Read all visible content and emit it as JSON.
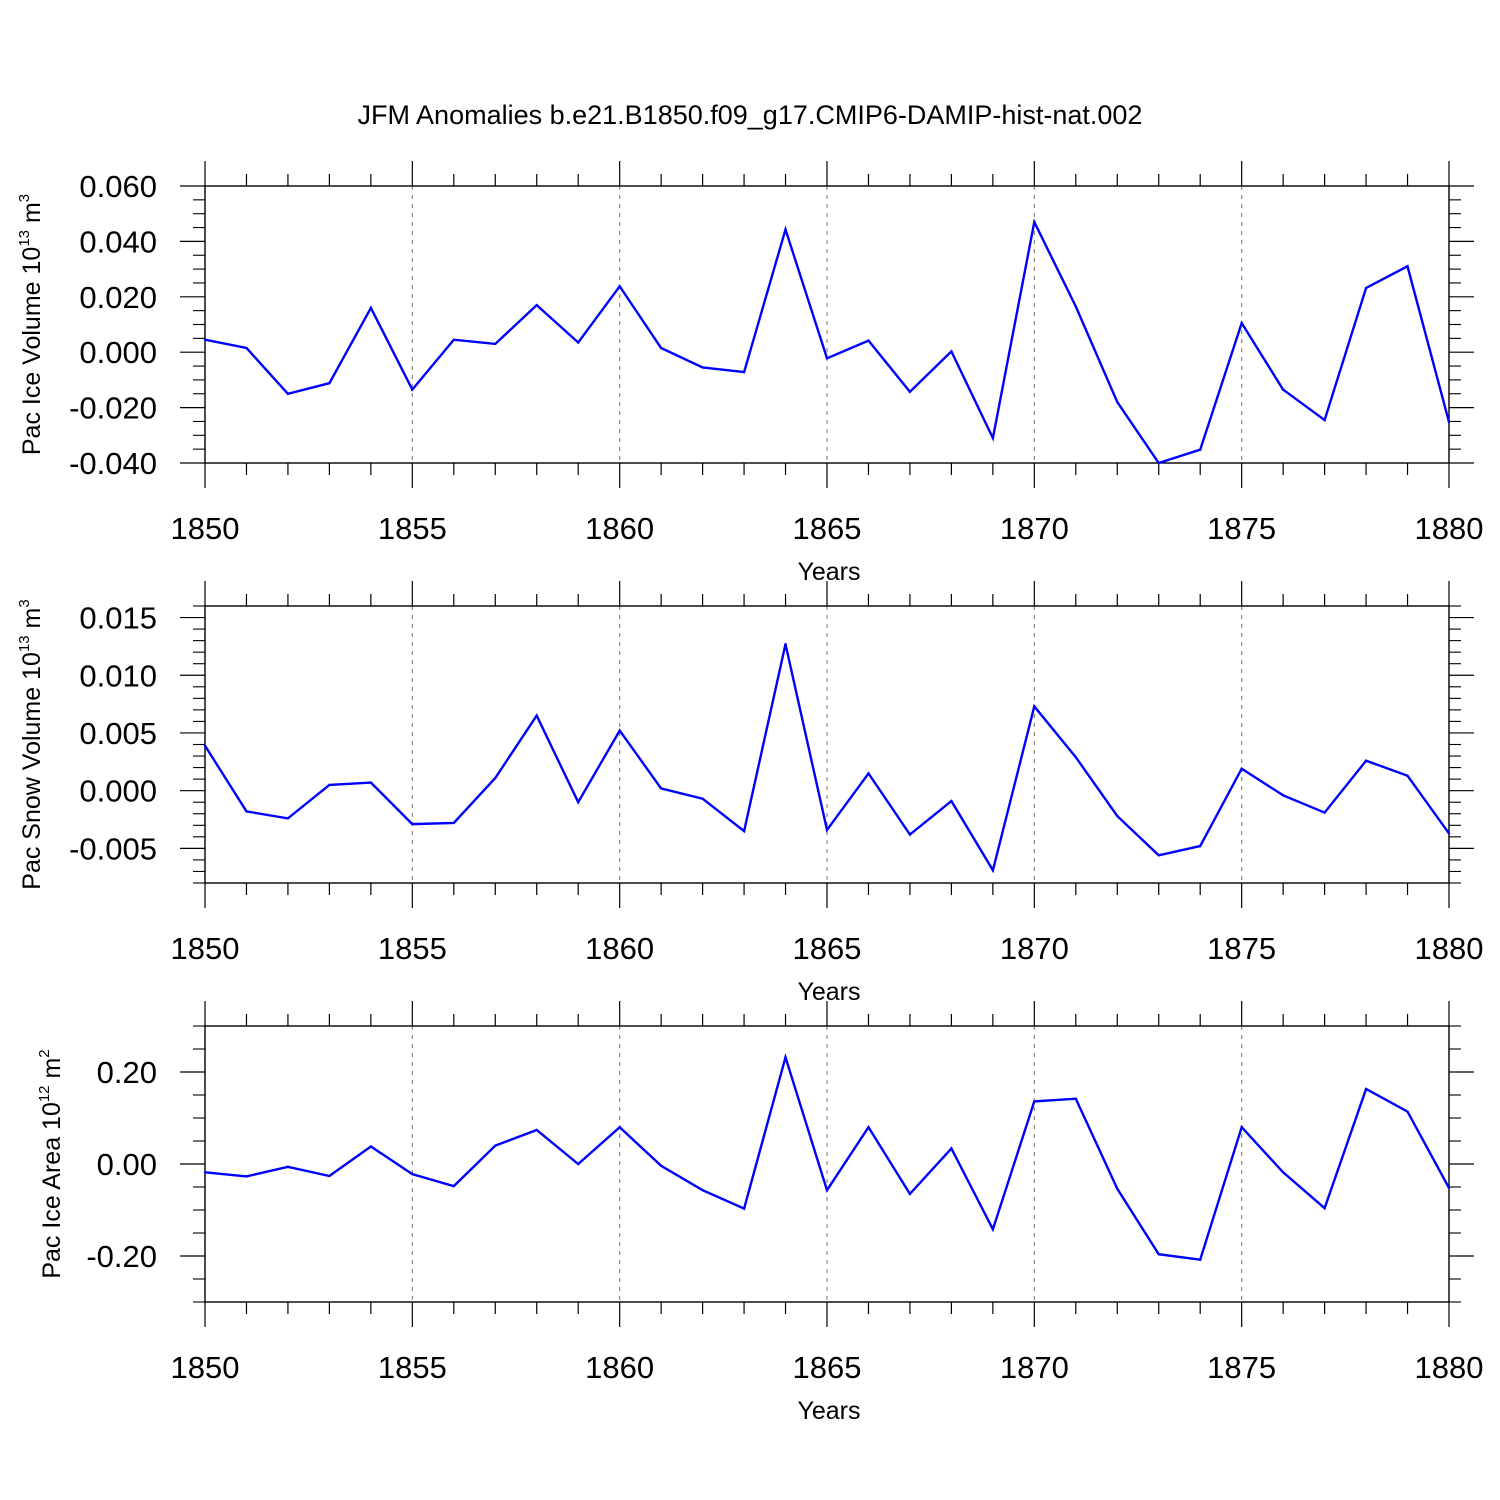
{
  "title": "JFM Anomalies b.e21.B1850.f09_g17.CMIP6-DAMIP-hist-nat.002",
  "colors": {
    "line": "#0000ff",
    "axis": "#000000",
    "grid": "#888888"
  },
  "chart_data": [
    {
      "type": "line",
      "ylabel": {
        "text": "Pac Ice Volume 10",
        "exp": "13",
        "unit": " m",
        "unit_exp": "3"
      },
      "xlabel": "Years",
      "xlim": [
        1850,
        1880
      ],
      "ylim": [
        -0.04,
        0.06
      ],
      "major_yticks": [
        -0.04,
        -0.02,
        0.0,
        0.02,
        0.04,
        0.06
      ],
      "ytick_labels": [
        "-0.040",
        "-0.020",
        "0.000",
        "0.020",
        "0.040",
        "0.060"
      ],
      "minor_ystep": 0.005,
      "x": [
        1850,
        1851,
        1852,
        1853,
        1854,
        1855,
        1856,
        1857,
        1858,
        1859,
        1860,
        1861,
        1862,
        1863,
        1864,
        1865,
        1866,
        1867,
        1868,
        1869,
        1870,
        1871,
        1872,
        1873,
        1874,
        1875,
        1876,
        1877,
        1878,
        1879,
        1880
      ],
      "series": [
        {
          "name": "Pac Ice Volume",
          "values": [
            0.0045,
            0.0015,
            -0.015,
            -0.0112,
            0.016,
            -0.0135,
            0.0045,
            0.003,
            0.017,
            0.0035,
            0.0238,
            0.0015,
            -0.0055,
            -0.0072,
            0.0443,
            -0.0022,
            0.0042,
            -0.0143,
            0.0003,
            -0.031,
            0.047,
            0.0165,
            -0.018,
            -0.04,
            -0.0352,
            0.0105,
            -0.0135,
            -0.0245,
            0.0232,
            0.031,
            -0.0252
          ]
        }
      ]
    },
    {
      "type": "line",
      "ylabel": {
        "text": "Pac Snow Volume 10",
        "exp": "13",
        "unit": " m",
        "unit_exp": "3"
      },
      "xlabel": "Years",
      "xlim": [
        1850,
        1880
      ],
      "ylim": [
        -0.008,
        0.016
      ],
      "major_yticks": [
        -0.005,
        0.0,
        0.005,
        0.01,
        0.015
      ],
      "ytick_labels": [
        "-0.005",
        "0.000",
        "0.005",
        "0.010",
        "0.015"
      ],
      "minor_ystep": 0.001,
      "x": [
        1850,
        1851,
        1852,
        1853,
        1854,
        1855,
        1856,
        1857,
        1858,
        1859,
        1860,
        1861,
        1862,
        1863,
        1864,
        1865,
        1866,
        1867,
        1868,
        1869,
        1870,
        1871,
        1872,
        1873,
        1874,
        1875,
        1876,
        1877,
        1878,
        1879,
        1880
      ],
      "series": [
        {
          "name": "Pac Snow Volume",
          "values": [
            0.0039,
            -0.0018,
            -0.0024,
            0.0005,
            0.0007,
            -0.0029,
            -0.0028,
            0.0011,
            0.0065,
            -0.001,
            0.0052,
            0.0002,
            -0.0007,
            -0.0035,
            0.0127,
            -0.0034,
            0.0015,
            -0.0038,
            -0.0009,
            -0.0069,
            0.0073,
            0.0029,
            -0.0022,
            -0.0056,
            -0.0048,
            0.0019,
            -0.0004,
            -0.0019,
            0.0026,
            0.0013,
            -0.0037
          ]
        }
      ]
    },
    {
      "type": "line",
      "ylabel": {
        "text": "Pac Ice Area 10",
        "exp": "12",
        "unit": " m",
        "unit_exp": "2"
      },
      "xlabel": "Years",
      "xlim": [
        1850,
        1880
      ],
      "ylim": [
        -0.3,
        0.3
      ],
      "major_yticks": [
        -0.2,
        0.0,
        0.2
      ],
      "ytick_labels": [
        "-0.20",
        "0.00",
        "0.20"
      ],
      "minor_ystep": 0.05,
      "x": [
        1850,
        1851,
        1852,
        1853,
        1854,
        1855,
        1856,
        1857,
        1858,
        1859,
        1860,
        1861,
        1862,
        1863,
        1864,
        1865,
        1866,
        1867,
        1868,
        1869,
        1870,
        1871,
        1872,
        1873,
        1874,
        1875,
        1876,
        1877,
        1878,
        1879,
        1880
      ],
      "series": [
        {
          "name": "Pac Ice Area",
          "values": [
            -0.018,
            -0.027,
            -0.006,
            -0.026,
            0.038,
            -0.022,
            -0.048,
            0.04,
            0.074,
            0.0,
            0.08,
            -0.004,
            -0.057,
            -0.097,
            0.232,
            -0.057,
            0.08,
            -0.065,
            0.034,
            -0.142,
            0.136,
            0.142,
            -0.054,
            -0.196,
            -0.208,
            0.08,
            -0.018,
            -0.096,
            0.163,
            0.114,
            -0.052
          ]
        }
      ]
    }
  ]
}
